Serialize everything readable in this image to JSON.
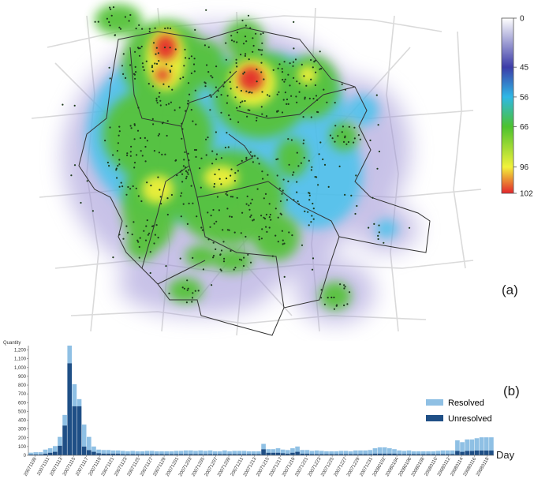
{
  "panels": {
    "map_label": "(a)",
    "chart_label": "(b)"
  },
  "colorbar": {
    "ticks": [
      "0",
      "45",
      "56",
      "66",
      "96",
      "102"
    ],
    "stops": [
      "#ffffff",
      "#3c3ca8",
      "#2fb8e6",
      "#4cc22e",
      "#f2f23a",
      "#e3242b"
    ]
  },
  "colors": {
    "resolved": "#8fc0e4",
    "unresolved": "#1f4f86",
    "map_road": "#d9d9d9",
    "map_boundary": "#333333",
    "map_dot": "#1a3a1a"
  },
  "chart_data": [
    {
      "type": "heatmap",
      "colorbar_ticks": [
        0,
        45,
        56,
        66,
        96,
        102
      ],
      "colorbar_range": [
        0,
        102
      ]
    },
    {
      "type": "bar",
      "stacked": true,
      "xlabel": "Day",
      "ylabel": "Quantity",
      "ylim": [
        0,
        1250
      ],
      "yticks": [
        "0",
        "100",
        "200",
        "300",
        "400",
        "500",
        "600",
        "700",
        "800",
        "900",
        "1,000",
        "1,100",
        "1,200"
      ],
      "legend_position": "right",
      "x_tick_labels": [
        "20071109",
        "20071111",
        "20071113",
        "20071115",
        "20071117",
        "20071119",
        "20071121",
        "20071123",
        "20071125",
        "20071127",
        "20071129",
        "20071201",
        "20071203",
        "20071205",
        "20071207",
        "20071209",
        "20071211",
        "20071213",
        "20071215",
        "20071217",
        "20071219",
        "20071221",
        "20071223",
        "20071225",
        "20071227",
        "20071229",
        "20071231",
        "20080102",
        "20080104",
        "20080106",
        "20080108",
        "20080110",
        "20080112",
        "20080114",
        "20080116",
        "20080118"
      ],
      "series": [
        {
          "name": "Resolved",
          "values": [
            20,
            25,
            25,
            45,
            50,
            65,
            100,
            120,
            200,
            250,
            80,
            250,
            150,
            60,
            40,
            40,
            40,
            35,
            35,
            35,
            30,
            35,
            30,
            30,
            35,
            35,
            30,
            30,
            30,
            30,
            35,
            35,
            40,
            40,
            35,
            40,
            35,
            40,
            30,
            30,
            40,
            30,
            35,
            35,
            35,
            30,
            30,
            30,
            60,
            40,
            40,
            50,
            40,
            40,
            50,
            60,
            40,
            40,
            35,
            40,
            35,
            30,
            30,
            30,
            35,
            35,
            30,
            40,
            40,
            40,
            45,
            60,
            70,
            70,
            60,
            50,
            40,
            35,
            40,
            30,
            30,
            30,
            30,
            30,
            35,
            40,
            40,
            40,
            120,
            110,
            130,
            130,
            140,
            150,
            150,
            150
          ]
        },
        {
          "name": "Unresolved",
          "values": [
            10,
            10,
            10,
            20,
            30,
            40,
            110,
            340,
            1050,
            560,
            560,
            100,
            60,
            40,
            25,
            20,
            20,
            20,
            20,
            15,
            15,
            15,
            15,
            15,
            15,
            15,
            15,
            15,
            15,
            15,
            15,
            15,
            15,
            15,
            15,
            15,
            15,
            15,
            15,
            15,
            15,
            15,
            15,
            15,
            15,
            15,
            15,
            15,
            70,
            30,
            30,
            30,
            25,
            20,
            30,
            40,
            20,
            20,
            15,
            15,
            15,
            15,
            15,
            15,
            15,
            15,
            15,
            15,
            15,
            15,
            15,
            20,
            20,
            20,
            20,
            20,
            15,
            15,
            15,
            15,
            15,
            15,
            15,
            15,
            15,
            15,
            15,
            15,
            50,
            40,
            50,
            50,
            55,
            55,
            55,
            55
          ]
        }
      ]
    }
  ]
}
